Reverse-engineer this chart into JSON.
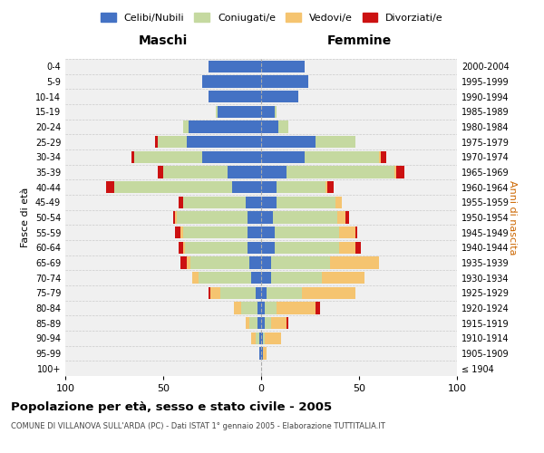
{
  "age_groups": [
    "100+",
    "95-99",
    "90-94",
    "85-89",
    "80-84",
    "75-79",
    "70-74",
    "65-69",
    "60-64",
    "55-59",
    "50-54",
    "45-49",
    "40-44",
    "35-39",
    "30-34",
    "25-29",
    "20-24",
    "15-19",
    "10-14",
    "5-9",
    "0-4"
  ],
  "birth_years": [
    "≤ 1904",
    "1905-1909",
    "1910-1914",
    "1915-1919",
    "1920-1924",
    "1925-1929",
    "1930-1934",
    "1935-1939",
    "1940-1944",
    "1945-1949",
    "1950-1954",
    "1955-1959",
    "1960-1964",
    "1965-1969",
    "1970-1974",
    "1975-1979",
    "1980-1984",
    "1985-1989",
    "1990-1994",
    "1995-1999",
    "2000-2004"
  ],
  "maschi": {
    "celibi": [
      0,
      1,
      1,
      2,
      2,
      3,
      5,
      6,
      7,
      7,
      7,
      8,
      15,
      17,
      30,
      38,
      37,
      22,
      27,
      30,
      27
    ],
    "coniugati": [
      0,
      0,
      2,
      4,
      8,
      18,
      27,
      30,
      32,
      33,
      36,
      32,
      60,
      33,
      35,
      15,
      3,
      1,
      0,
      0,
      0
    ],
    "vedovi": [
      0,
      0,
      2,
      2,
      4,
      5,
      3,
      2,
      1,
      1,
      1,
      0,
      0,
      0,
      0,
      0,
      0,
      0,
      0,
      0,
      0
    ],
    "divorziati": [
      0,
      0,
      0,
      0,
      0,
      1,
      0,
      3,
      2,
      3,
      1,
      2,
      4,
      3,
      1,
      1,
      0,
      0,
      0,
      0,
      0
    ]
  },
  "femmine": {
    "nubili": [
      0,
      1,
      1,
      2,
      2,
      3,
      5,
      5,
      7,
      7,
      6,
      8,
      8,
      13,
      22,
      28,
      9,
      7,
      19,
      24,
      22
    ],
    "coniugate": [
      0,
      0,
      1,
      3,
      6,
      18,
      26,
      30,
      33,
      33,
      33,
      30,
      25,
      55,
      38,
      20,
      5,
      1,
      0,
      0,
      0
    ],
    "vedove": [
      0,
      2,
      8,
      8,
      20,
      27,
      22,
      25,
      8,
      8,
      4,
      3,
      1,
      1,
      1,
      0,
      0,
      0,
      0,
      0,
      0
    ],
    "divorziate": [
      0,
      0,
      0,
      1,
      2,
      0,
      0,
      0,
      3,
      1,
      2,
      0,
      3,
      4,
      3,
      0,
      0,
      0,
      0,
      0,
      0
    ]
  },
  "colors": {
    "celibi": "#4472c4",
    "coniugati": "#c5d9a0",
    "vedovi": "#f5c470",
    "divorziati": "#cc1111"
  },
  "xlim": 100,
  "title": "Popolazione per età, sesso e stato civile - 2005",
  "subtitle": "COMUNE DI VILLANOVA SULL'ARDA (PC) - Dati ISTAT 1° gennaio 2005 - Elaborazione TUTTITALIA.IT",
  "ylabel_left": "Fasce di età",
  "ylabel_right": "Anni di nascita",
  "xlabel_left": "Maschi",
  "xlabel_right": "Femmine",
  "bg_color": "#ffffff",
  "plot_bg": "#f0f0f0",
  "grid_color": "#cccccc"
}
